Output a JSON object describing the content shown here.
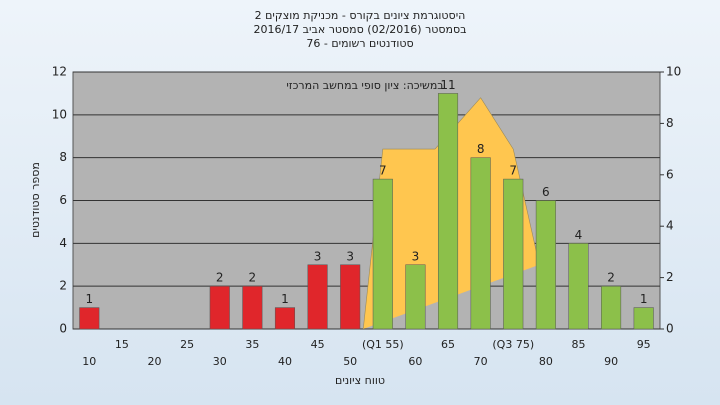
{
  "chart_data": {
    "type": "bar",
    "title": [
      "היסטוגרמת ציונים בקורס - מכניקת מוצקים 2",
      "בסמסטר (02/2016) סמסטר אביב 2016/17",
      "סטודנטים רשומים - 76"
    ],
    "annotation": "במשיכה: ציון סופי במחשב המרכזי",
    "x_label": "טווח ציונים",
    "y_label": "מספר סטודנטים",
    "categories": [
      "10",
      "15",
      "20",
      "25",
      "30",
      "35",
      "40",
      "45",
      "50",
      "(Q1 55)",
      "60",
      "65",
      "70",
      "(Q3 75)",
      "80",
      "85",
      "90",
      "95"
    ],
    "values": [
      1,
      0,
      0,
      0,
      2,
      2,
      1,
      3,
      3,
      7,
      3,
      11,
      8,
      7,
      6,
      4,
      2,
      1
    ],
    "bar_colors": [
      "#e0262b",
      "#e0262b",
      "#e0262b",
      "#e0262b",
      "#e0262b",
      "#e0262b",
      "#e0262b",
      "#e0262b",
      "#e0262b",
      "#8cc04a",
      "#8cc04a",
      "#8cc04a",
      "#8cc04a",
      "#8cc04a",
      "#8cc04a",
      "#8cc04a",
      "#8cc04a",
      "#8cc04a"
    ],
    "area": {
      "color": "#ffc64f",
      "axis": "y2",
      "x": [
        52,
        55,
        63,
        70,
        75,
        79
      ],
      "values": [
        0,
        7,
        7,
        9,
        7,
        2.5
      ]
    },
    "ylim": [
      0,
      12
    ],
    "yticks": [
      0,
      2,
      4,
      6,
      8,
      10,
      12
    ],
    "y2lim": [
      0,
      10
    ],
    "y2ticks": [
      0,
      2,
      4,
      6,
      8,
      10
    ],
    "grid": true
  }
}
